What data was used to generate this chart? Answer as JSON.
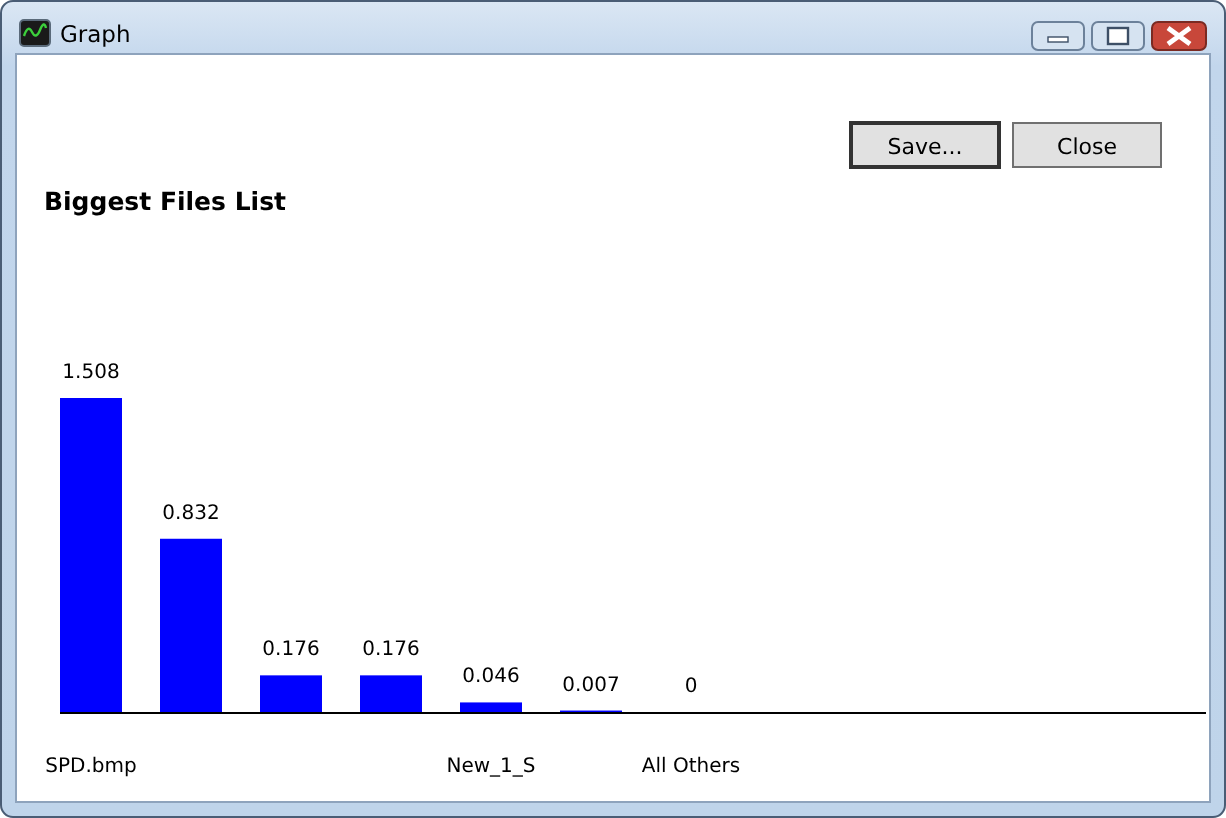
{
  "chart_data": {
    "type": "bar",
    "title": "Biggest Files List",
    "categories": [
      "SPD.bmp",
      null,
      null,
      null,
      "New_1_S",
      null,
      "All Others"
    ],
    "values": [
      1.508,
      0.832,
      0.176,
      0.176,
      0.046,
      0.007,
      0
    ],
    "color": "#0000ff",
    "data_labels": true,
    "annotations": [
      "Graph",
      "Save...",
      "Close"
    ]
  }
}
